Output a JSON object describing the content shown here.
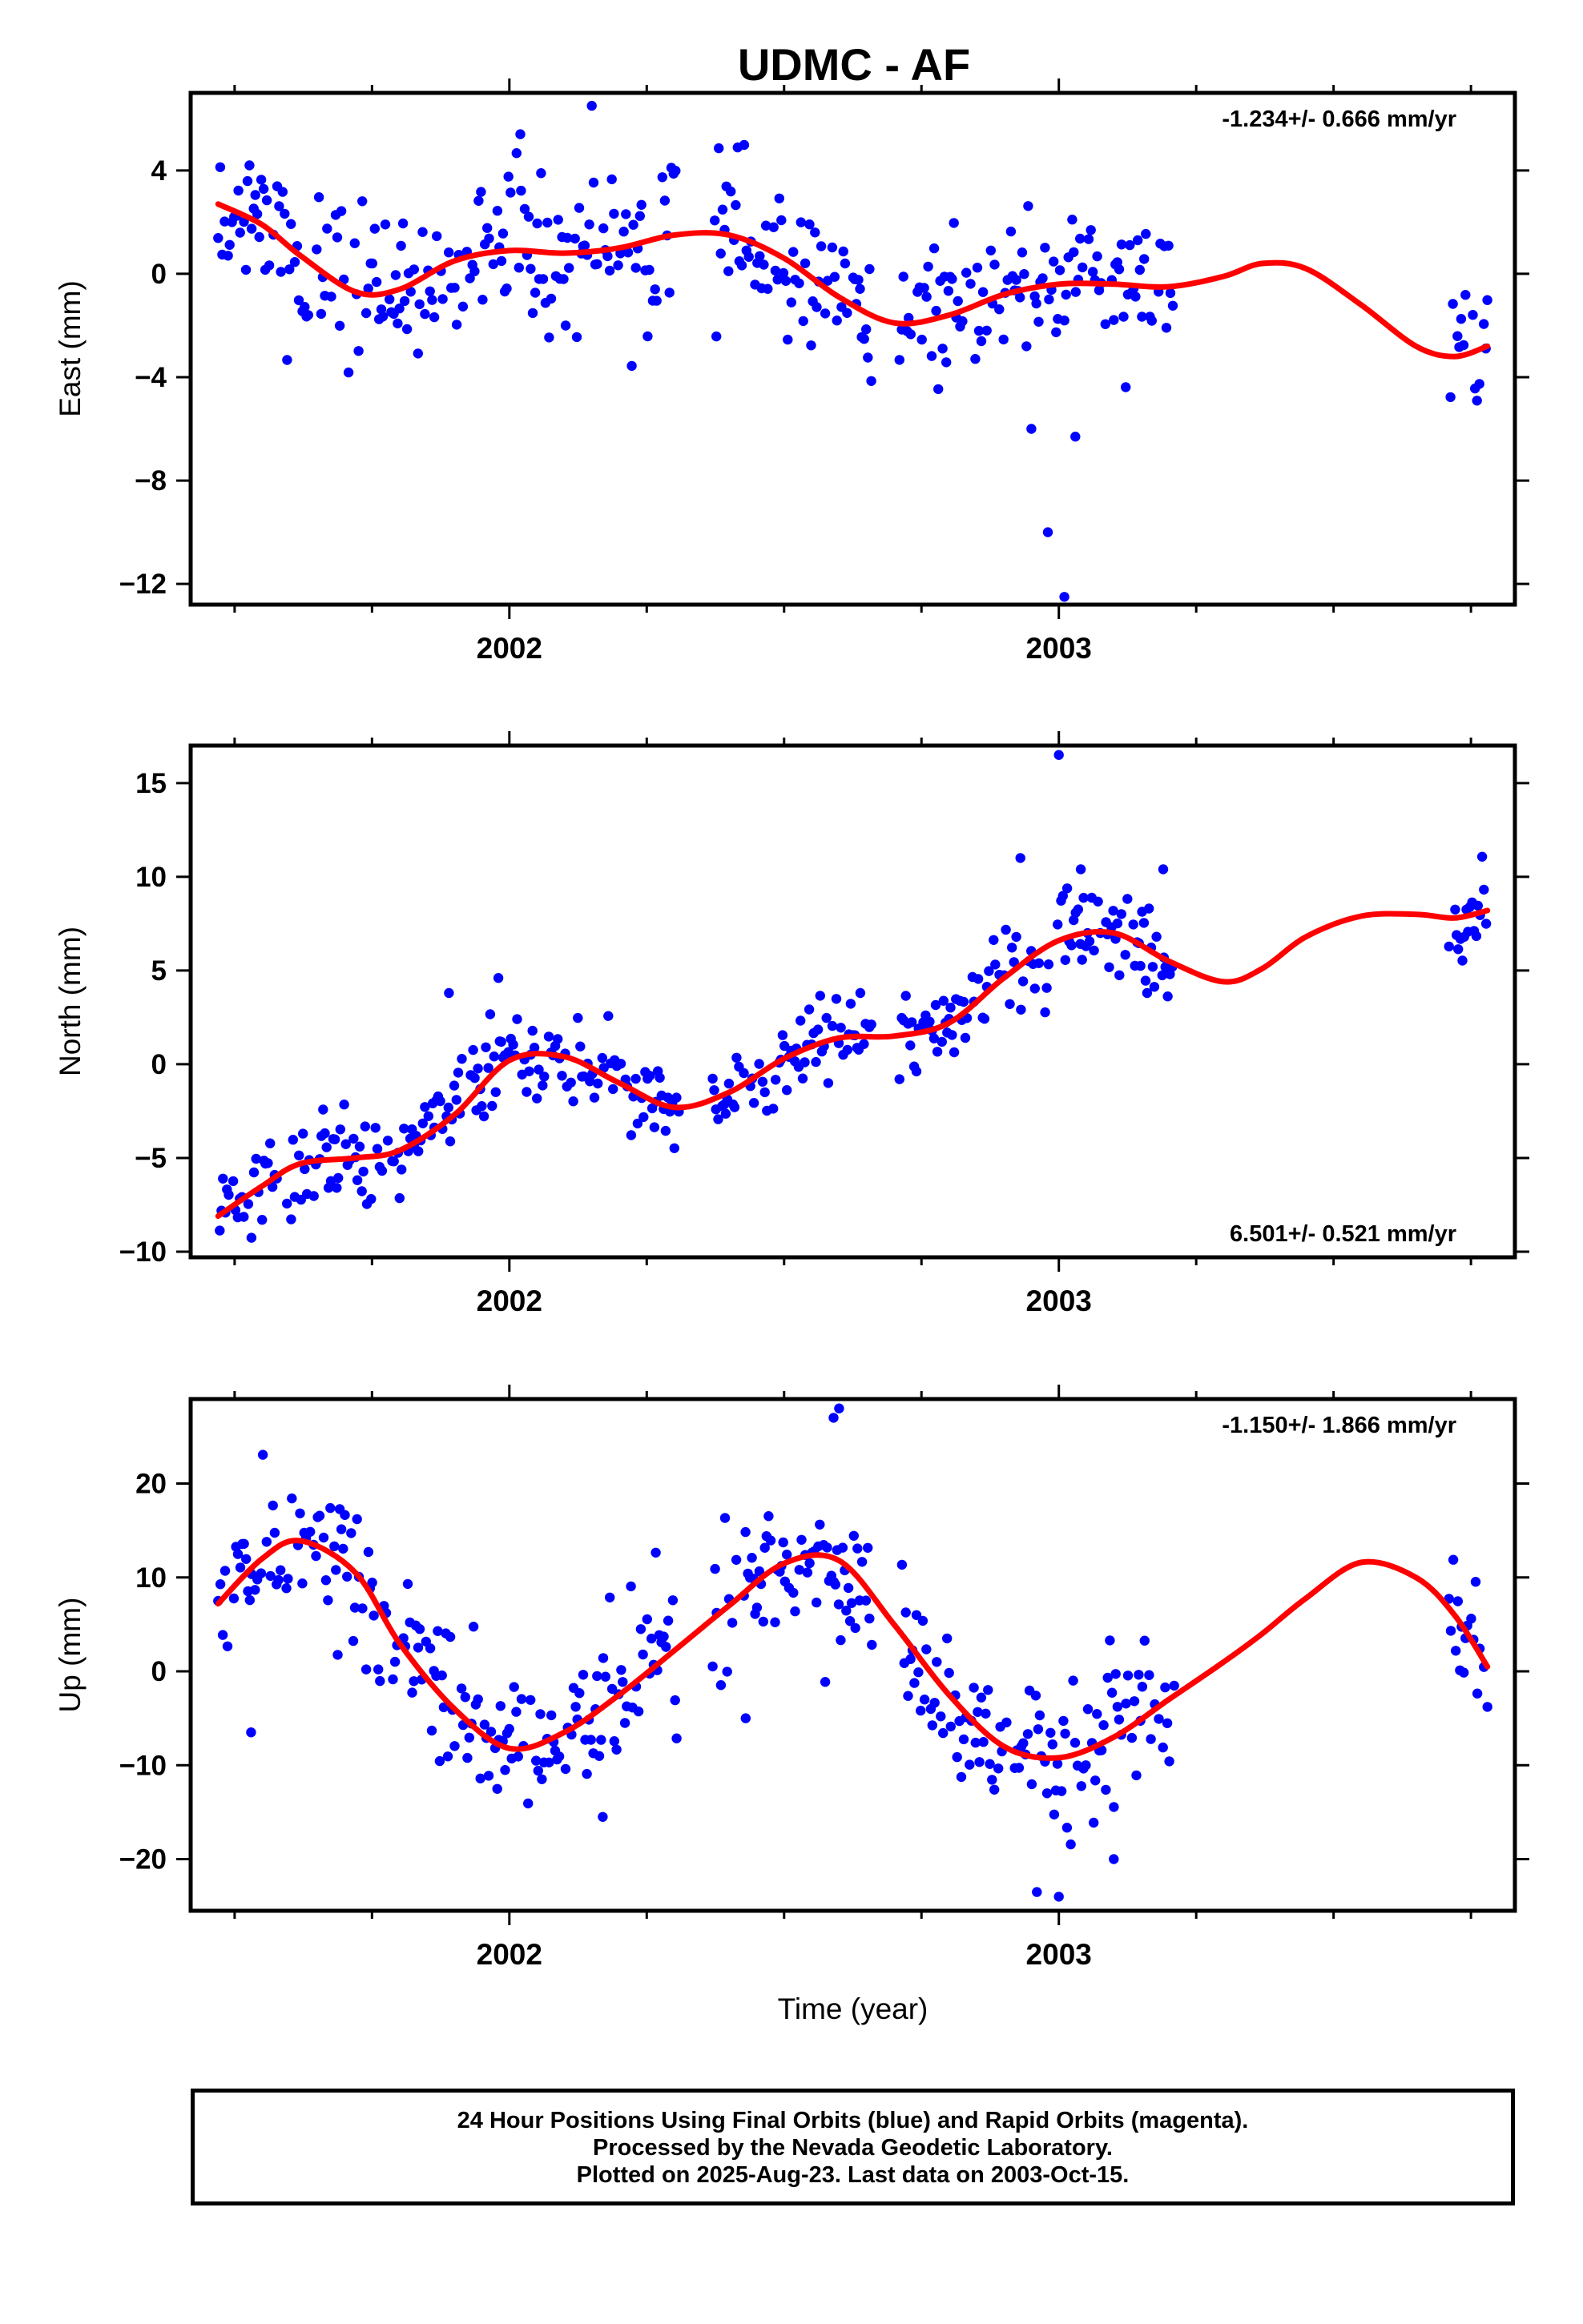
{
  "title": "UDMC - AF",
  "footer": {
    "line1": "24 Hour Positions Using Final Orbits (blue) and Rapid Orbits (magenta).",
    "line2": "Processed by the Nevada Geodetic Laboratory.",
    "line3": "Plotted on 2025-Aug-23. Last data on 2003-Oct-15."
  },
  "colors": {
    "points": "#0000ff",
    "fit": "#ff0000",
    "axes": "#000000"
  },
  "chart_data": [
    {
      "type": "scatter",
      "ylabel": "East (mm)",
      "xlabel": "",
      "rate_label": "-1.234+/- 0.666 mm/yr",
      "rate_position": "top-right",
      "xlim": [
        2001.42,
        2003.83
      ],
      "ylim": [
        -12.8,
        7.0
      ],
      "x_ticks": [
        2002,
        2003
      ],
      "x_tick_labels": [
        "2002",
        "2003"
      ],
      "y_ticks": [
        4,
        0,
        -4,
        -8,
        -12
      ],
      "y_tick_labels": [
        "4",
        "0",
        "−4",
        "−8",
        "−12"
      ],
      "fit": {
        "x": [
          2001.47,
          2001.55,
          2001.62,
          2001.72,
          2001.8,
          2001.9,
          2002.0,
          2002.1,
          2002.2,
          2002.3,
          2002.4,
          2002.5,
          2002.6,
          2002.7,
          2002.8,
          2002.9,
          2003.0,
          2003.1,
          2003.2,
          2003.3,
          2003.37,
          2003.45,
          2003.55,
          2003.65,
          2003.72,
          2003.78
        ],
        "y": [
          2.7,
          1.9,
          0.7,
          -0.7,
          -0.6,
          0.5,
          0.9,
          0.8,
          1.0,
          1.5,
          1.5,
          0.6,
          -0.9,
          -1.9,
          -1.6,
          -0.8,
          -0.4,
          -0.4,
          -0.5,
          -0.1,
          0.4,
          0.2,
          -1.2,
          -2.8,
          -3.2,
          -2.8
        ]
      },
      "series_shape": {
        "x": [
          2001.47,
          2001.55,
          2001.62,
          2001.72,
          2001.8,
          2001.9,
          2002.0,
          2002.1,
          2002.2,
          2002.3,
          2002.4,
          2002.5,
          2002.6,
          2002.7,
          2002.8,
          2002.9,
          2003.0,
          2003.1,
          2003.2,
          2003.3,
          2003.37,
          2003.45,
          2003.55,
          2003.65,
          2003.72,
          2003.78
        ],
        "y": [
          2.7,
          1.9,
          0.7,
          -0.7,
          -0.6,
          0.5,
          0.9,
          0.8,
          1.0,
          1.5,
          1.5,
          0.6,
          -0.9,
          -1.9,
          -1.6,
          -0.8,
          -0.4,
          -0.4,
          -0.5,
          -0.1,
          0.4,
          0.2,
          -1.2,
          -2.8,
          -3.2,
          -2.8
        ]
      },
      "segments": [
        [
          2001.47,
          2002.31
        ],
        [
          2002.37,
          2002.66
        ],
        [
          2002.71,
          2003.21
        ],
        [
          2003.71,
          2003.78
        ]
      ],
      "scatter_sd": 1.5,
      "seed": 11,
      "outliers": {
        "x": [
          2002.15,
          2002.02,
          2002.98,
          2003.03,
          2003.01,
          2002.95
        ],
        "y": [
          6.5,
          5.4,
          -10.0,
          -6.3,
          -12.5,
          -6.0
        ]
      }
    },
    {
      "type": "scatter",
      "ylabel": "North (mm)",
      "xlabel": "",
      "rate_label": "6.501+/- 0.521 mm/yr",
      "rate_position": "bottom-right",
      "xlim": [
        2001.42,
        2003.83
      ],
      "ylim": [
        -10.3,
        17.0
      ],
      "x_ticks": [
        2002,
        2003
      ],
      "x_tick_labels": [
        "2002",
        "2003"
      ],
      "y_ticks": [
        15,
        10,
        5,
        0,
        -5,
        -10
      ],
      "y_tick_labels": [
        "15",
        "10",
        "5",
        "0",
        "−5",
        "−10"
      ],
      "fit": {
        "x": [
          2001.47,
          2001.55,
          2001.62,
          2001.72,
          2001.8,
          2001.9,
          2002.0,
          2002.1,
          2002.2,
          2002.3,
          2002.4,
          2002.5,
          2002.6,
          2002.7,
          2002.8,
          2002.9,
          2003.0,
          2003.1,
          2003.2,
          2003.3,
          2003.37,
          2003.45,
          2003.55,
          2003.65,
          2003.72,
          2003.78
        ],
        "y": [
          -8.1,
          -6.5,
          -5.3,
          -5.0,
          -4.6,
          -2.7,
          0.2,
          0.4,
          -1.0,
          -2.3,
          -1.5,
          0.3,
          1.4,
          1.5,
          2.2,
          4.6,
          6.6,
          7.0,
          5.5,
          4.4,
          5.1,
          6.8,
          7.9,
          8.0,
          7.8,
          8.2
        ]
      },
      "series_shape": {
        "x": [
          2001.47,
          2001.55,
          2001.62,
          2001.72,
          2001.8,
          2001.9,
          2002.0,
          2002.1,
          2002.2,
          2002.3,
          2002.4,
          2002.5,
          2002.6,
          2002.7,
          2002.8,
          2002.9,
          2003.0,
          2003.1,
          2003.2,
          2003.3,
          2003.37,
          2003.45,
          2003.55,
          2003.65,
          2003.72,
          2003.78
        ],
        "y": [
          -8.1,
          -6.5,
          -5.3,
          -5.0,
          -4.6,
          -2.7,
          0.2,
          0.4,
          -1.0,
          -2.3,
          -1.5,
          0.3,
          1.4,
          1.5,
          2.2,
          4.6,
          6.6,
          7.0,
          5.5,
          4.4,
          5.1,
          6.8,
          7.9,
          8.0,
          7.8,
          8.2
        ]
      },
      "segments": [
        [
          2001.47,
          2002.31
        ],
        [
          2002.37,
          2002.66
        ],
        [
          2002.71,
          2003.21
        ],
        [
          2003.71,
          2003.78
        ]
      ],
      "scatter_sd": 1.2,
      "seed": 23,
      "outliers": {
        "x": [
          2003.0,
          2002.93,
          2003.04,
          2003.19,
          2001.98,
          2001.89
        ],
        "y": [
          16.5,
          11.0,
          10.4,
          10.4,
          4.6,
          3.8
        ]
      }
    },
    {
      "type": "scatter",
      "ylabel": "Up (mm)",
      "xlabel": "Time (year)",
      "rate_label": "-1.150+/- 1.866 mm/yr",
      "rate_position": "top-right",
      "xlim": [
        2001.42,
        2003.83
      ],
      "ylim": [
        -25.5,
        29.0
      ],
      "x_ticks": [
        2002,
        2003
      ],
      "x_tick_labels": [
        "2002",
        "2003"
      ],
      "y_ticks": [
        20,
        10,
        0,
        -10,
        -20
      ],
      "y_tick_labels": [
        "20",
        "10",
        "0",
        "−10",
        "−20"
      ],
      "fit": {
        "x": [
          2001.47,
          2001.55,
          2001.62,
          2001.72,
          2001.8,
          2001.9,
          2002.0,
          2002.1,
          2002.2,
          2002.3,
          2002.4,
          2002.5,
          2002.6,
          2002.7,
          2002.8,
          2002.9,
          2003.0,
          2003.1,
          2003.2,
          2003.3,
          2003.37,
          2003.45,
          2003.55,
          2003.65,
          2003.72,
          2003.78
        ],
        "y": [
          7.2,
          12.0,
          13.9,
          10.5,
          3.0,
          -4.0,
          -8.2,
          -6.5,
          -2.5,
          2.2,
          7.0,
          11.5,
          11.8,
          5.0,
          -2.5,
          -8.0,
          -9.2,
          -7.0,
          -3.0,
          1.0,
          4.0,
          7.8,
          11.6,
          10.0,
          6.0,
          0.5
        ]
      },
      "series_shape": {
        "x": [
          2001.47,
          2001.55,
          2001.62,
          2001.72,
          2001.8,
          2001.9,
          2002.0,
          2002.1,
          2002.2,
          2002.3,
          2002.4,
          2002.5,
          2002.6,
          2002.7,
          2002.8,
          2002.9,
          2003.0,
          2003.1,
          2003.2,
          2003.3,
          2003.37,
          2003.45,
          2003.55,
          2003.65,
          2003.72,
          2003.78
        ],
        "y": [
          7.2,
          12.0,
          13.9,
          10.5,
          3.0,
          -4.0,
          -8.2,
          -6.5,
          -2.5,
          2.2,
          7.0,
          11.5,
          11.8,
          5.0,
          -2.5,
          -8.0,
          -9.2,
          -7.0,
          -3.0,
          1.0,
          4.0,
          7.8,
          11.6,
          10.0,
          6.0,
          0.5
        ]
      },
      "segments": [
        [
          2001.47,
          2002.31
        ],
        [
          2002.37,
          2002.66
        ],
        [
          2002.71,
          2003.21
        ],
        [
          2003.71,
          2003.78
        ]
      ],
      "scatter_sd": 4.0,
      "seed": 37,
      "outliers": {
        "x": [
          2002.6,
          2002.59,
          2001.53,
          2002.96,
          2003.0,
          2003.1,
          2002.17,
          2002.43
        ],
        "y": [
          28.0,
          27.0,
          -6.5,
          -23.5,
          -24.0,
          -20.0,
          -15.5,
          -5.0
        ]
      }
    }
  ]
}
